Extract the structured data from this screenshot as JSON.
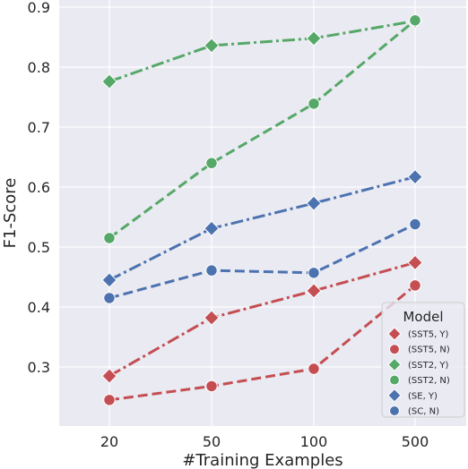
{
  "chart_data": {
    "type": "line",
    "title": "",
    "xlabel": "#Training Examples",
    "ylabel": "F1-Score",
    "x": [
      "20",
      "50",
      "100",
      "500"
    ],
    "ylim": [
      0.2,
      0.9
    ],
    "yticks": [
      "0.3",
      "0.4",
      "0.5",
      "0.6",
      "0.7",
      "0.8",
      "0.9"
    ],
    "grid": true,
    "legend": {
      "title": "Model",
      "placement": "bottom-right"
    },
    "series": [
      {
        "name": "(SST5, Y)",
        "color": "#c44e52",
        "marker": "diamond",
        "dash": "dashdot",
        "values": [
          0.285,
          0.382,
          0.427,
          0.474
        ]
      },
      {
        "name": "(SST5, N)",
        "color": "#c44e52",
        "marker": "circle",
        "dash": "dashed",
        "values": [
          0.245,
          0.268,
          0.297,
          0.436
        ]
      },
      {
        "name": "(SST2, Y)",
        "color": "#55a868",
        "marker": "diamond",
        "dash": "dashdot",
        "values": [
          0.776,
          0.836,
          0.848,
          0.877
        ]
      },
      {
        "name": "(SST2, N)",
        "color": "#55a868",
        "marker": "circle",
        "dash": "dashed",
        "values": [
          0.515,
          0.64,
          0.739,
          0.878
        ]
      },
      {
        "name": "(SE, Y)",
        "color": "#4c72b0",
        "marker": "diamond",
        "dash": "dashdot",
        "values": [
          0.445,
          0.531,
          0.573,
          0.617
        ]
      },
      {
        "name": "(SC, N)",
        "color": "#4c72b0",
        "marker": "circle",
        "dash": "dashed",
        "values": [
          0.415,
          0.461,
          0.457,
          0.538
        ]
      }
    ]
  }
}
